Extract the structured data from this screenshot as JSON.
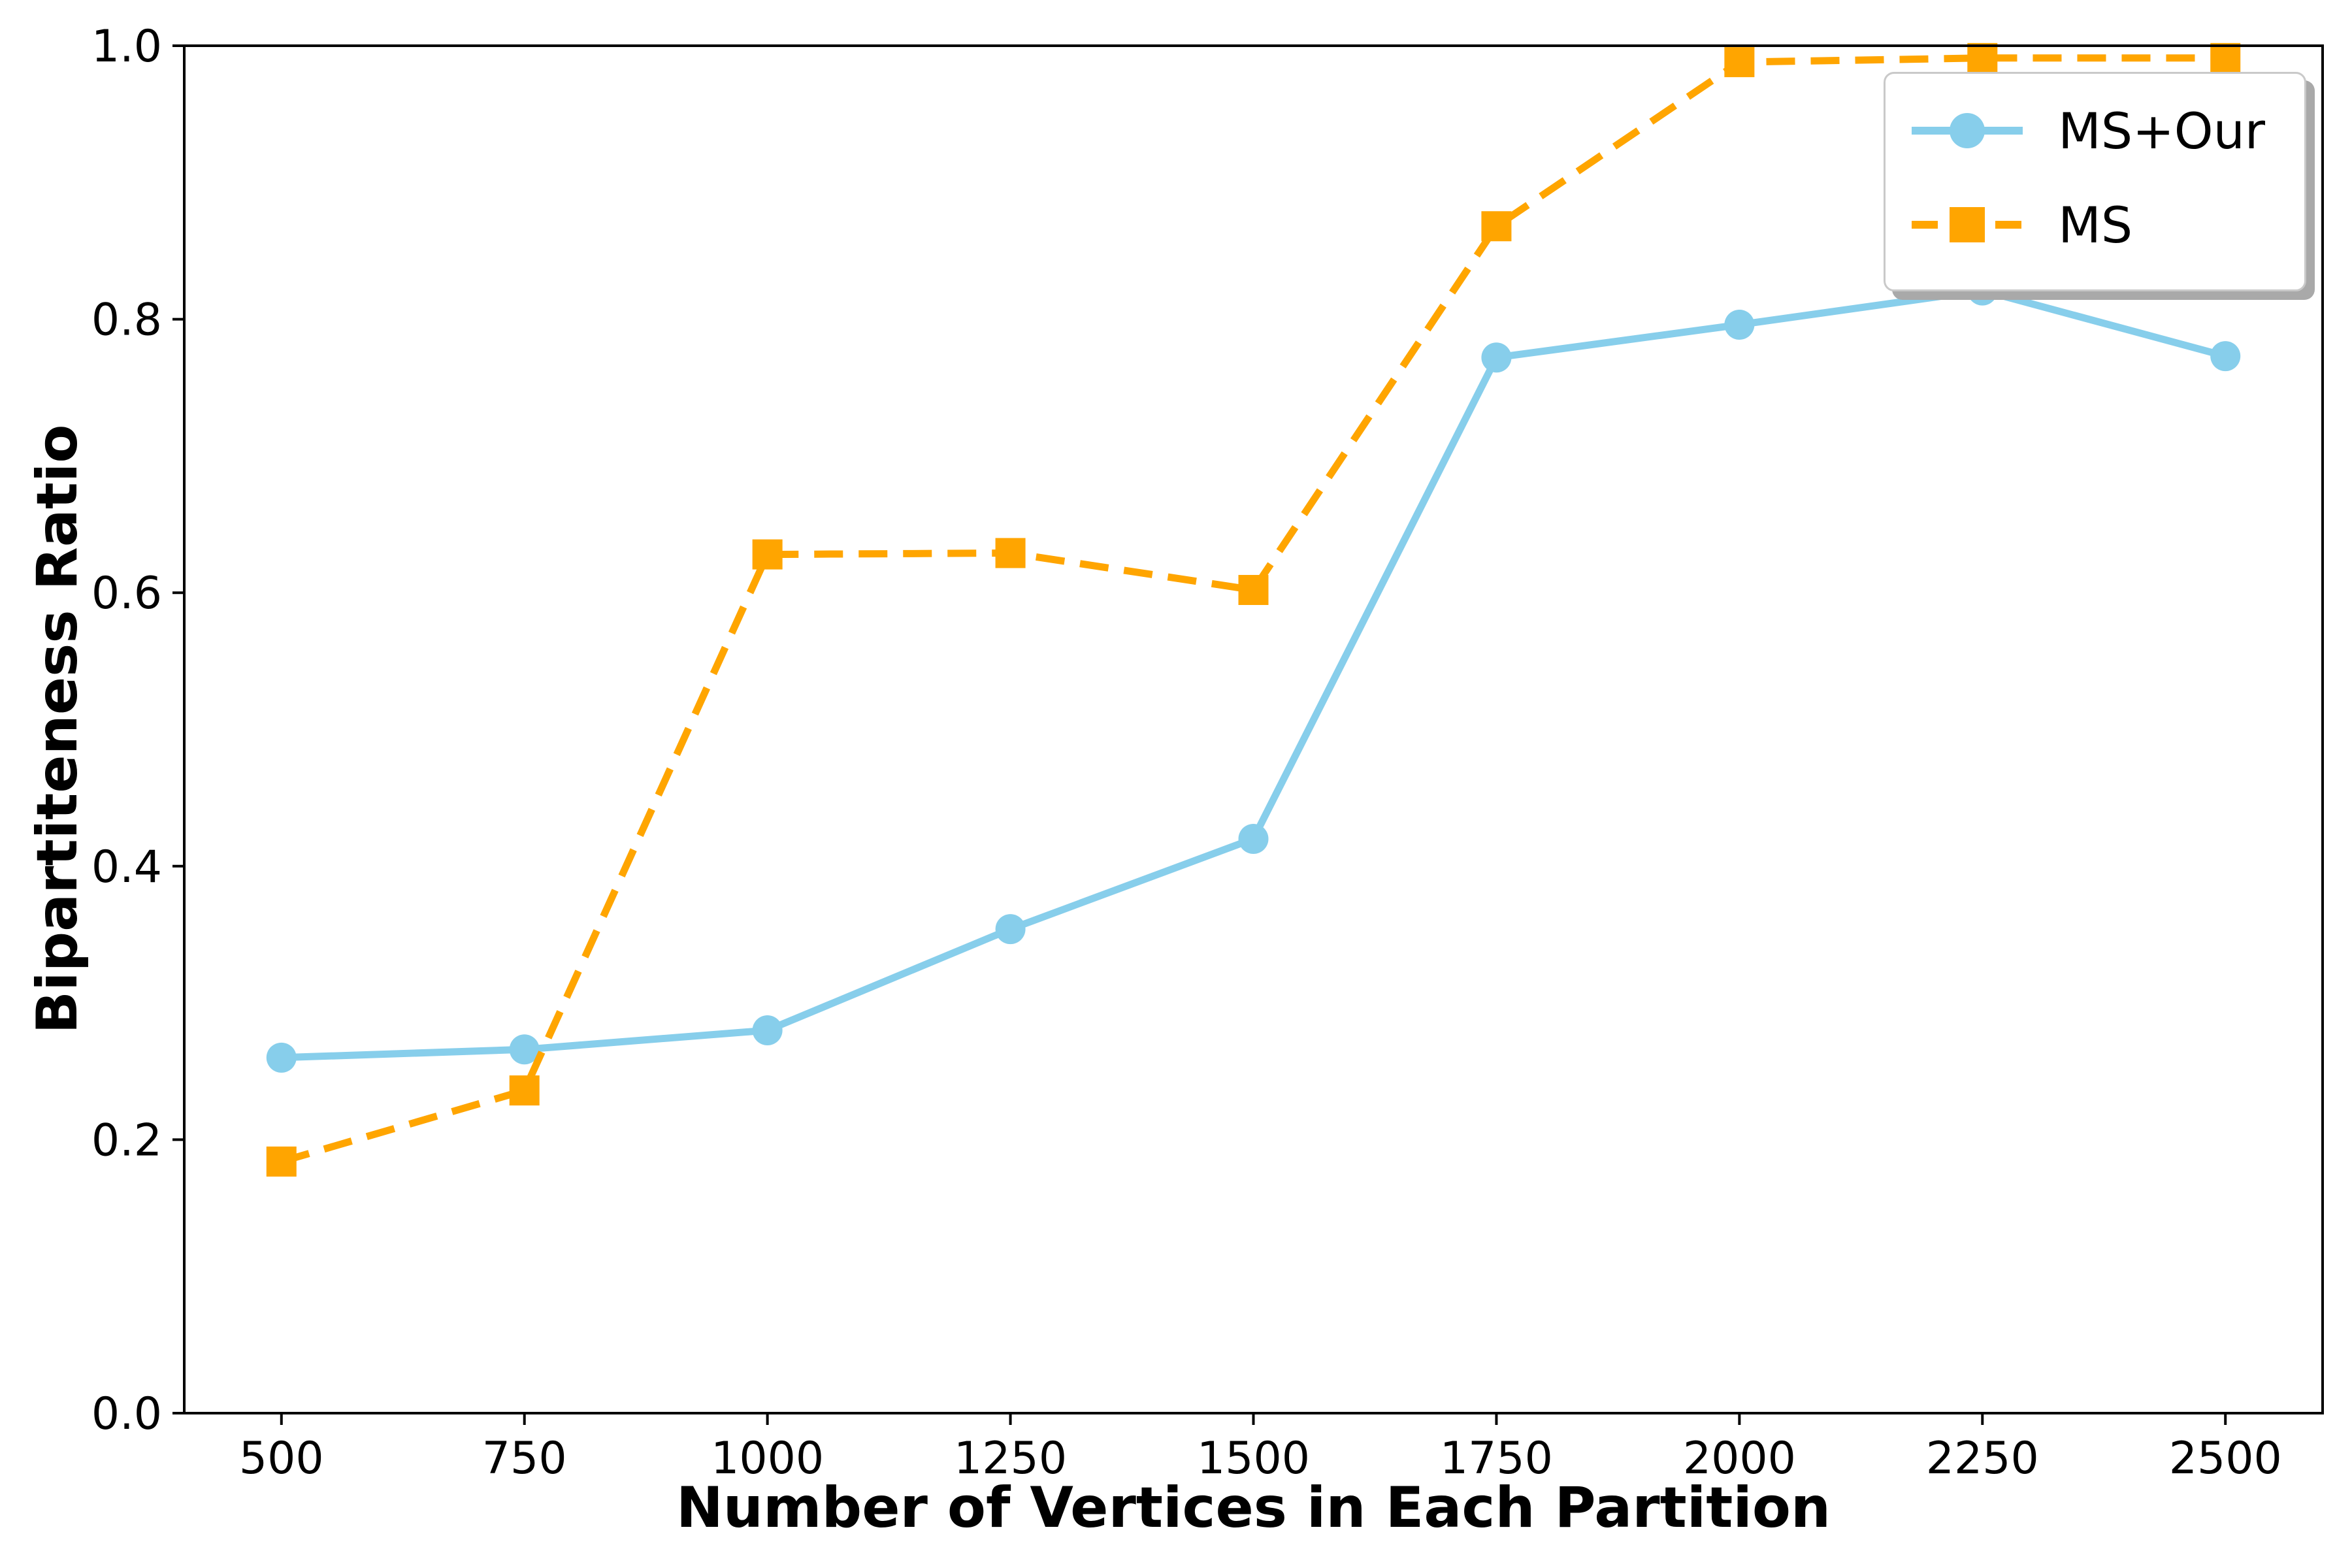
{
  "figure": {
    "background_color": "#ffffff",
    "frame_color": "#000000"
  },
  "chart_data": {
    "type": "line",
    "title": "",
    "xlabel": "Number of Vertices in Each Partition",
    "ylabel": "Bipartiteness Ratio",
    "x": [
      500,
      750,
      1000,
      1250,
      1500,
      1750,
      2000,
      2250,
      2500
    ],
    "series": [
      {
        "name": "MS+Our",
        "color": "#87CEEB",
        "linestyle": "solid",
        "marker": "circle",
        "values": [
          0.26,
          0.266,
          0.28,
          0.354,
          0.42,
          0.772,
          0.796,
          0.821,
          0.773
        ]
      },
      {
        "name": "MS",
        "color": "#FFA500",
        "linestyle": "dashed",
        "marker": "square",
        "values": [
          0.184,
          0.236,
          0.628,
          0.629,
          0.602,
          0.868,
          0.988,
          0.991,
          0.991
        ]
      }
    ],
    "xlim": [
      400,
      2600
    ],
    "ylim": [
      0.0,
      1.0
    ],
    "x_ticks": {
      "values": [
        500,
        750,
        1000,
        1250,
        1500,
        1750,
        2000,
        2250,
        2500
      ],
      "labels": [
        "500",
        "750",
        "1000",
        "1250",
        "1500",
        "1750",
        "2000",
        "2250",
        "2500"
      ]
    },
    "y_ticks": {
      "values": [
        0.0,
        0.2,
        0.4,
        0.6,
        0.8,
        1.0
      ],
      "labels": [
        "0.0",
        "0.2",
        "0.4",
        "0.6",
        "0.8",
        "1.0"
      ]
    },
    "grid": false,
    "legend_position": "upper right"
  }
}
